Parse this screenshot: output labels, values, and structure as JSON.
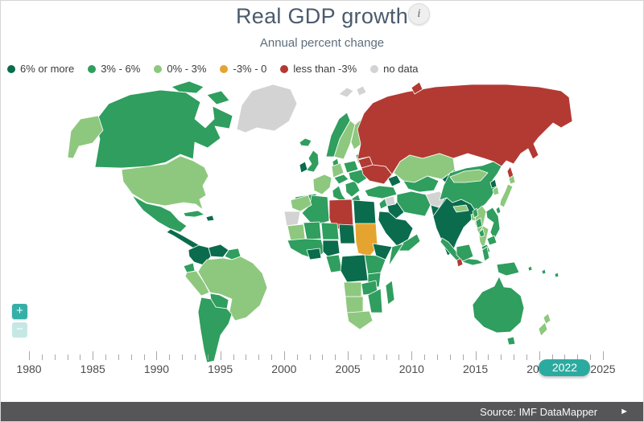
{
  "header": {
    "title": "Real GDP growth",
    "subtitle": "Annual percent change",
    "info_icon": "i"
  },
  "legend": {
    "items": [
      {
        "label": "6% or more",
        "category": "six_plus",
        "color": "#0a6c4c"
      },
      {
        "label": "3% - 6%",
        "category": "three_six",
        "color": "#2f9e5e"
      },
      {
        "label": "0% - 3%",
        "category": "zero_three",
        "color": "#8dc87e"
      },
      {
        "label": "-3% - 0",
        "category": "neg_three_zero",
        "color": "#e5a42f"
      },
      {
        "label": "less than -3%",
        "category": "less_neg_three",
        "color": "#b23a33"
      },
      {
        "label": "no data",
        "category": "no_data",
        "color": "#d3d3d3"
      }
    ]
  },
  "map": {
    "regions": {
      "greenland": "no_data",
      "svalbard": "no_data",
      "canada": "three_six",
      "alaska": "zero_three",
      "usa": "zero_three",
      "mexico": "three_six",
      "cuba": "three_six",
      "hispaniola": "six_plus",
      "centralamerica": "six_plus",
      "colombia": "six_plus",
      "venezuela": "six_plus",
      "guyanas": "three_six",
      "ecuador": "three_six",
      "peru": "zero_three",
      "brazil": "zero_three",
      "bolivia": "three_six",
      "argentina": "three_six",
      "iceland": "three_six",
      "norway": "three_six",
      "sweden": "zero_three",
      "finland": "zero_three",
      "baltics": "three_six",
      "denmark": "three_six",
      "uk": "three_six",
      "ireland": "six_plus",
      "germany": "zero_three",
      "poland": "three_six",
      "france": "zero_three",
      "iberia": "three_six",
      "centraleurope": "three_six",
      "italy": "three_six",
      "balkans": "three_six",
      "romania": "three_six",
      "greece": "three_six",
      "belarus": "less_neg_three",
      "ukraine": "less_neg_three",
      "russia": "less_neg_three",
      "kazakhstan": "zero_three",
      "uzbekturkmen": "three_six",
      "kyrgyztajik": "six_plus",
      "caucasus": "six_plus",
      "turkey": "three_six",
      "syria": "no_data",
      "levant": "three_six",
      "iraq": "six_plus",
      "iran": "three_six",
      "afghanistan": "no_data",
      "pakistan": "six_plus",
      "saudi": "six_plus",
      "yemenoman": "three_six",
      "morocco": "zero_three",
      "wsahara": "no_data",
      "algeria": "three_six",
      "libya": "less_neg_three",
      "egypt": "six_plus",
      "mauritania": "zero_three",
      "mali": "three_six",
      "niger": "three_six",
      "chad": "six_plus",
      "sudan": "neg_three_zero",
      "westafrica": "three_six",
      "civghana": "six_plus",
      "nigeria": "six_plus",
      "ethiopia": "six_plus",
      "somalia": "three_six",
      "camgabon": "three_six",
      "drc": "six_plus",
      "eastafrica": "three_six",
      "tanzania": "three_six",
      "angola": "zero_three",
      "zambia": "three_six",
      "mozambique": "three_six",
      "namibiabotswana": "zero_three",
      "southafrica": "zero_three",
      "madagascar": "three_six",
      "india": "six_plus",
      "nepal": "zero_three",
      "bangladesh": "zero_three",
      "srilanka": "less_neg_three",
      "myanmar": "zero_three",
      "thailand": "zero_three",
      "vietnam": "three_six",
      "cambodia": "three_six",
      "malaysia": "three_six",
      "china": "three_six",
      "mongolia": "zero_three",
      "nkorea": "six_plus",
      "skorea": "zero_three",
      "japan": "zero_three",
      "taiwan": "three_six",
      "philippines": "three_six",
      "sumatra": "three_six",
      "java": "three_six",
      "borneo": "three_six",
      "sulawesi": "three_six",
      "papua": "three_six",
      "pacific": "three_six",
      "australia": "three_six",
      "tasmania": "three_six",
      "nz": "zero_three"
    }
  },
  "timeline": {
    "start_year": 1980,
    "end_year": 2025,
    "label_step": 5,
    "selected_year": "2022"
  },
  "controls": {
    "zoom_in_label": "+",
    "zoom_out_label": "−"
  },
  "footer": {
    "source_label": "Source: IMF DataMapper",
    "play_icon": "►"
  }
}
